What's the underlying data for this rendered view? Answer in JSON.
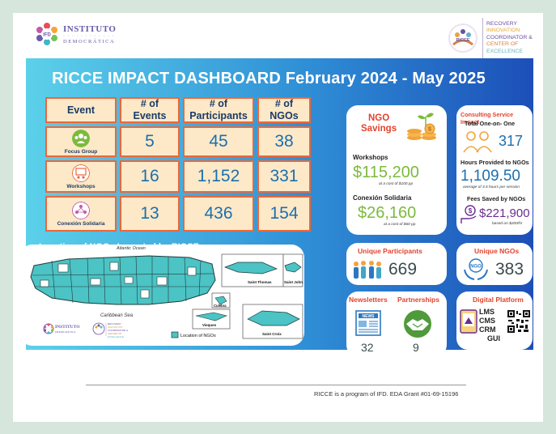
{
  "header": {
    "ifd_logo": {
      "mark_text": "IFD",
      "line1": "INSTITUTO",
      "line2": "DEMOCRÁTICA"
    },
    "ricce_logo": {
      "mark_text": "RICCE",
      "lines": [
        "RECOVERY",
        "INNOVATION",
        "COORDINATOR &",
        "CENTER OF",
        "EXCELLENCE"
      ]
    }
  },
  "dashboard": {
    "title": "RICCE IMPACT DASHBOARD February 2024 - May 2025",
    "table": {
      "headers": [
        "Event",
        "# of\nEvents",
        "# of\nParticipants",
        "# of\nNGOs"
      ],
      "rows": [
        {
          "event": "Focus Group",
          "icon": "focus-group-icon",
          "events": "5",
          "participants": "45",
          "ngos": "38"
        },
        {
          "event": "Workshops",
          "icon": "workshop-icon",
          "events": "16",
          "participants": "1,152",
          "ngos": "331"
        },
        {
          "event": "Conexión Solidaria",
          "icon": "conexion-icon",
          "events": "13",
          "participants": "436",
          "ngos": "154"
        }
      ]
    },
    "map": {
      "section_title": "Location of NGOs Impacted by RICCE",
      "atlantic": "Atlantic Ocean",
      "caribbean": "Caribbean Sea",
      "labels": {
        "saint_thomas": "Saint Thomas",
        "saint_john": "Saint John",
        "saint_croix": "Saint Croix",
        "culebra": "Culebra",
        "vieques": "Vieques"
      },
      "legend": "Location of NGOs",
      "legend_color": "#4cc3c4"
    },
    "ngo_savings": {
      "title_line1": "NGO",
      "title_line2": "Savings",
      "workshops_label": "Workshops",
      "workshops_value": "$115,200",
      "workshops_note": "at a cost of $100 pp",
      "conexion_label": "Conexión Solidaria",
      "conexion_value": "$26,160",
      "conexion_note": "at a cost of $60 pp"
    },
    "consulting": {
      "title": "Consulting Service Impact",
      "one_on_one_label": "Total One-on- One",
      "one_on_one_value": "317",
      "hours_label": "Hours Provided to NGOs",
      "hours_value": "1,109.50",
      "hours_note": "average of 3.5 hours per session",
      "fees_label": "Fees Saved by NGOs",
      "fees_value": "$221,900",
      "fees_note": "based on $200/hr"
    },
    "unique_participants": {
      "title": "Unique Participants",
      "value": "669"
    },
    "unique_ngos": {
      "title": "Unique NGOs",
      "value": "383",
      "icon_text": "NGO"
    },
    "newsletters": {
      "title": "Newsletters",
      "value": "32",
      "icon_text": "NEWS"
    },
    "partnerships": {
      "title": "Partnerships",
      "value": "9"
    },
    "digital_platform": {
      "title": "Digital Platform",
      "items": [
        "LMS",
        "CMS",
        "CRM",
        "GUI"
      ]
    }
  },
  "footer": {
    "text": "RICCE is a program of IFD. EDA Grant #01-69-15196"
  },
  "colors": {
    "accent_orange": "#e9683c",
    "cell_fill": "#fde9c7",
    "red_title": "#e2432c",
    "green": "#7cba3d",
    "blue": "#1b6fb0"
  }
}
